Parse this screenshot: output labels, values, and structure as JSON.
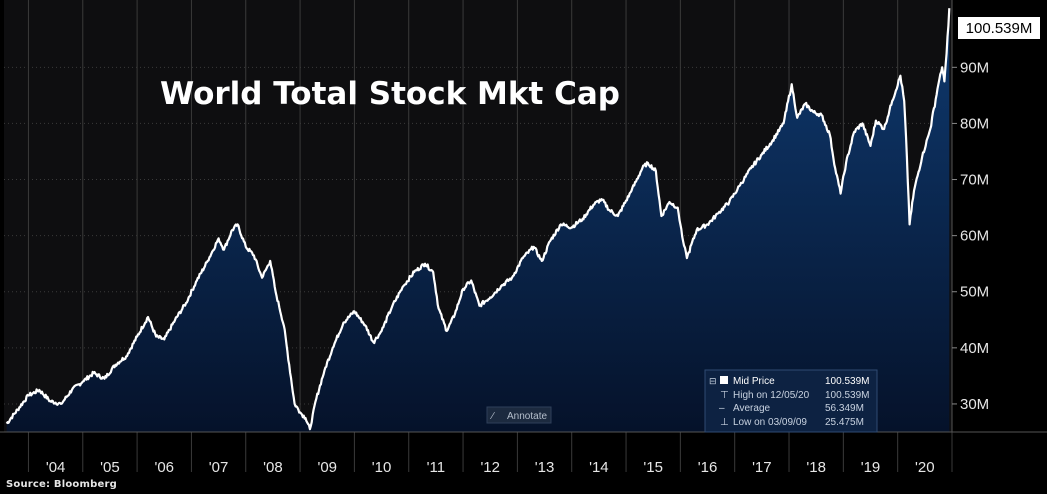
{
  "chart_data": {
    "type": "area",
    "title": "World Total Stock Mkt Cap",
    "source": "Source: Bloomberg",
    "ylim": [
      25,
      102
    ],
    "yticks": [
      {
        "v": 30,
        "label": "30M"
      },
      {
        "v": 40,
        "label": "40M"
      },
      {
        "v": 50,
        "label": "50M"
      },
      {
        "v": 60,
        "label": "60M"
      },
      {
        "v": 70,
        "label": "70M"
      },
      {
        "v": 80,
        "label": "80M"
      },
      {
        "v": 90,
        "label": "90M"
      }
    ],
    "last_value_label": "100.539M",
    "xticks": [
      "'04",
      "'05",
      "'06",
      "'07",
      "'08",
      "'09",
      "'10",
      "'11",
      "'12",
      "'13",
      "'14",
      "'15",
      "'16",
      "'17",
      "'18",
      "'19",
      "'20"
    ],
    "xlim": [
      2003.55,
      2021.0
    ],
    "series": [
      {
        "name": "Mid Price",
        "unit": "M",
        "points": [
          [
            2003.6,
            26.5
          ],
          [
            2003.8,
            29.0
          ],
          [
            2004.0,
            31.5
          ],
          [
            2004.2,
            32.5
          ],
          [
            2004.4,
            30.5
          ],
          [
            2004.6,
            30.0
          ],
          [
            2004.8,
            32.5
          ],
          [
            2005.0,
            34.0
          ],
          [
            2005.2,
            35.5
          ],
          [
            2005.4,
            34.5
          ],
          [
            2005.6,
            37.0
          ],
          [
            2005.8,
            38.5
          ],
          [
            2006.0,
            42.0
          ],
          [
            2006.2,
            45.5
          ],
          [
            2006.35,
            42.0
          ],
          [
            2006.5,
            41.5
          ],
          [
            2006.7,
            45.0
          ],
          [
            2006.9,
            48.0
          ],
          [
            2007.1,
            52.0
          ],
          [
            2007.3,
            55.5
          ],
          [
            2007.5,
            59.5
          ],
          [
            2007.6,
            57.5
          ],
          [
            2007.75,
            61.0
          ],
          [
            2007.85,
            62.0
          ],
          [
            2008.0,
            58.0
          ],
          [
            2008.15,
            56.5
          ],
          [
            2008.3,
            52.5
          ],
          [
            2008.45,
            55.5
          ],
          [
            2008.55,
            50.0
          ],
          [
            2008.7,
            44.0
          ],
          [
            2008.8,
            37.0
          ],
          [
            2008.9,
            30.0
          ],
          [
            2009.0,
            28.5
          ],
          [
            2009.1,
            27.5
          ],
          [
            2009.18,
            25.5
          ],
          [
            2009.3,
            31.0
          ],
          [
            2009.45,
            36.0
          ],
          [
            2009.6,
            40.0
          ],
          [
            2009.8,
            44.5
          ],
          [
            2010.0,
            46.5
          ],
          [
            2010.2,
            44.0
          ],
          [
            2010.35,
            41.0
          ],
          [
            2010.5,
            43.0
          ],
          [
            2010.7,
            47.5
          ],
          [
            2010.9,
            51.0
          ],
          [
            2011.1,
            53.5
          ],
          [
            2011.3,
            55.0
          ],
          [
            2011.45,
            53.5
          ],
          [
            2011.55,
            47.0
          ],
          [
            2011.7,
            43.0
          ],
          [
            2011.85,
            46.0
          ],
          [
            2012.0,
            50.5
          ],
          [
            2012.15,
            52.0
          ],
          [
            2012.3,
            47.5
          ],
          [
            2012.5,
            49.0
          ],
          [
            2012.7,
            51.0
          ],
          [
            2012.9,
            52.5
          ],
          [
            2013.1,
            56.0
          ],
          [
            2013.3,
            58.0
          ],
          [
            2013.45,
            55.5
          ],
          [
            2013.6,
            59.0
          ],
          [
            2013.8,
            62.0
          ],
          [
            2014.0,
            61.5
          ],
          [
            2014.2,
            63.0
          ],
          [
            2014.4,
            65.5
          ],
          [
            2014.55,
            66.5
          ],
          [
            2014.7,
            64.5
          ],
          [
            2014.85,
            63.5
          ],
          [
            2015.1,
            68.0
          ],
          [
            2015.3,
            72.0
          ],
          [
            2015.4,
            73.0
          ],
          [
            2015.55,
            71.5
          ],
          [
            2015.65,
            63.5
          ],
          [
            2015.8,
            66.0
          ],
          [
            2015.95,
            65.0
          ],
          [
            2016.05,
            59.0
          ],
          [
            2016.12,
            56.0
          ],
          [
            2016.3,
            61.0
          ],
          [
            2016.5,
            62.0
          ],
          [
            2016.7,
            64.0
          ],
          [
            2016.9,
            66.0
          ],
          [
            2017.1,
            69.0
          ],
          [
            2017.3,
            72.0
          ],
          [
            2017.5,
            74.5
          ],
          [
            2017.7,
            77.0
          ],
          [
            2017.9,
            80.0
          ],
          [
            2018.05,
            87.0
          ],
          [
            2018.15,
            81.0
          ],
          [
            2018.3,
            83.5
          ],
          [
            2018.45,
            82.0
          ],
          [
            2018.6,
            81.5
          ],
          [
            2018.75,
            78.0
          ],
          [
            2018.85,
            72.0
          ],
          [
            2018.95,
            67.5
          ],
          [
            2019.05,
            73.0
          ],
          [
            2019.2,
            78.5
          ],
          [
            2019.35,
            80.0
          ],
          [
            2019.5,
            76.0
          ],
          [
            2019.6,
            80.5
          ],
          [
            2019.75,
            79.0
          ],
          [
            2019.9,
            84.0
          ],
          [
            2020.05,
            88.5
          ],
          [
            2020.12,
            84.0
          ],
          [
            2020.17,
            74.0
          ],
          [
            2020.22,
            62.0
          ],
          [
            2020.3,
            68.0
          ],
          [
            2020.45,
            74.0
          ],
          [
            2020.6,
            79.0
          ],
          [
            2020.75,
            87.0
          ],
          [
            2020.82,
            90.0
          ],
          [
            2020.86,
            87.5
          ],
          [
            2020.9,
            92.5
          ],
          [
            2020.95,
            100.539
          ]
        ]
      }
    ],
    "legend": {
      "position": "bottom-right",
      "rows": [
        {
          "marker": "filled-square",
          "label": "Mid Price",
          "value": "100.539M"
        },
        {
          "marker": "high-arrow",
          "label": "High on 12/05/20",
          "value": "100.539M"
        },
        {
          "marker": "average-dash",
          "label": "Average",
          "value": "56.349M"
        },
        {
          "marker": "low-arrow",
          "label": "Low on 03/09/09",
          "value": "25.475M"
        }
      ]
    },
    "annotate_button": "Annotate",
    "grid": true,
    "colors": {
      "background": "#000000",
      "plot_background": "#0e0e10",
      "grid": "#3a3a3a",
      "line": "#ffffff",
      "fill_top": "#0f3a70",
      "fill_bottom": "#05122a",
      "axis_text": "#e6e6e6",
      "last_value_box": "#ffffff",
      "last_value_text": "#000000",
      "legend_bg": "#0d2242",
      "legend_border": "#2f4a72",
      "tab_accent": "#2a5cc8"
    }
  }
}
